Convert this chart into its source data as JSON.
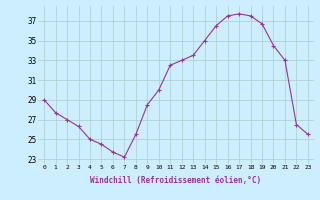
{
  "x": [
    0,
    1,
    2,
    3,
    4,
    5,
    6,
    7,
    8,
    9,
    10,
    11,
    12,
    13,
    14,
    15,
    16,
    17,
    18,
    19,
    20,
    21,
    22,
    23
  ],
  "y": [
    29,
    27.7,
    27,
    26.3,
    25,
    24.5,
    23.7,
    23.2,
    25.5,
    28.5,
    30,
    32.5,
    33,
    33.5,
    35,
    36.5,
    37.5,
    37.7,
    37.5,
    36.7,
    34.5,
    33,
    26.5,
    25.5
  ],
  "line_color": "#993399",
  "marker": "+",
  "bg_color": "#cceeff",
  "grid_color": "#aacccc",
  "xlabel": "Windchill (Refroidissement éolien,°C)",
  "xlabel_color": "#993399",
  "yticks": [
    23,
    25,
    27,
    29,
    31,
    33,
    35,
    37
  ],
  "xticks": [
    0,
    1,
    2,
    3,
    4,
    5,
    6,
    7,
    8,
    9,
    10,
    11,
    12,
    13,
    14,
    15,
    16,
    17,
    18,
    19,
    20,
    21,
    22,
    23
  ],
  "ylim": [
    22.5,
    38.5
  ],
  "xlim": [
    -0.5,
    23.5
  ]
}
